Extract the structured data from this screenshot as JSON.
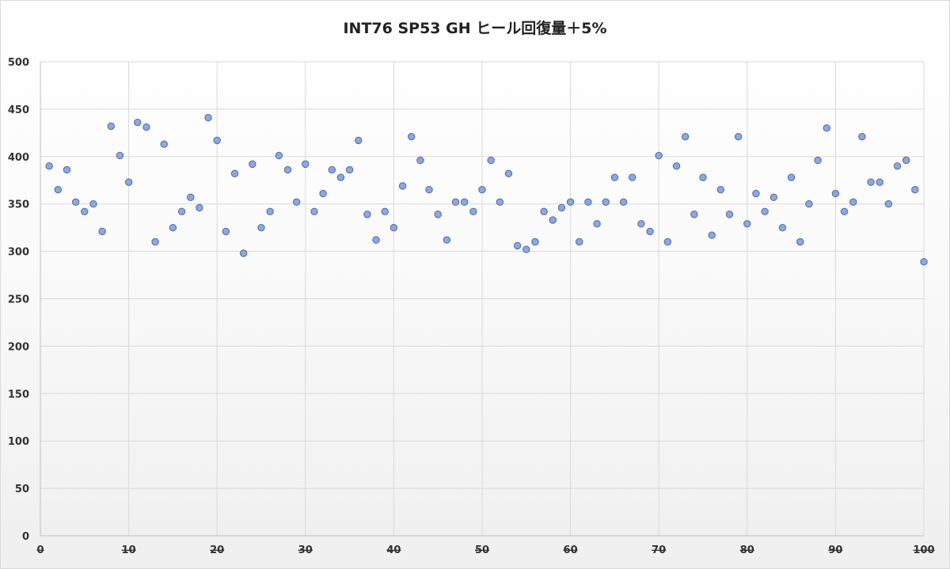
{
  "chart_data": {
    "type": "scatter",
    "title": "INT76 SP53 GH ヒール回復量＋5%",
    "xlabel": "",
    "ylabel": "",
    "xlim": [
      0,
      100
    ],
    "ylim": [
      0,
      500
    ],
    "x_ticks": [
      0,
      10,
      20,
      30,
      40,
      50,
      60,
      70,
      80,
      90,
      100
    ],
    "y_ticks": [
      0,
      50,
      100,
      150,
      200,
      250,
      300,
      350,
      400,
      450,
      500
    ],
    "grid": true,
    "legend": "none",
    "marker_fill": "#8fa8dc",
    "marker_stroke": "#4a69b5",
    "series": [
      {
        "x": [
          1,
          2,
          3,
          4,
          5,
          6,
          7,
          8,
          9,
          10,
          11,
          12,
          13,
          14,
          15,
          16,
          17,
          18,
          19,
          20,
          21,
          22,
          23,
          24,
          25,
          26,
          27,
          28,
          29,
          30,
          31,
          32,
          33,
          34,
          35,
          36,
          37,
          38,
          39,
          40,
          41,
          42,
          43,
          44,
          45,
          46,
          47,
          48,
          49,
          50,
          51,
          52,
          53,
          54,
          55,
          56,
          57,
          58,
          59,
          60,
          61,
          62,
          63,
          64,
          65,
          66,
          67,
          68,
          69,
          70,
          71,
          72,
          73,
          74,
          75,
          76,
          77,
          78,
          79,
          80,
          81,
          82,
          83,
          84,
          85,
          86,
          87,
          88,
          89,
          90,
          91,
          92,
          93,
          94,
          95,
          96,
          97,
          98,
          99,
          100
        ],
        "y": [
          390,
          365,
          386,
          352,
          342,
          350,
          321,
          432,
          401,
          373,
          436,
          431,
          310,
          413,
          325,
          342,
          357,
          346,
          441,
          417,
          321,
          382,
          298,
          392,
          325,
          342,
          401,
          386,
          352,
          392,
          342,
          361,
          386,
          378,
          386,
          417,
          339,
          312,
          342,
          325,
          369,
          421,
          396,
          365,
          339,
          312,
          352,
          352,
          342,
          365,
          396,
          352,
          382,
          306,
          302,
          310,
          342,
          333,
          346,
          352,
          310,
          352,
          329,
          352,
          378,
          352,
          378,
          329,
          321,
          401,
          310,
          390,
          421,
          339,
          378,
          317,
          365,
          339,
          421,
          329,
          361,
          342,
          357,
          325,
          378,
          310,
          350,
          396,
          430,
          361,
          342,
          352,
          421,
          373,
          373,
          350,
          390,
          396,
          365,
          289
        ]
      }
    ]
  }
}
